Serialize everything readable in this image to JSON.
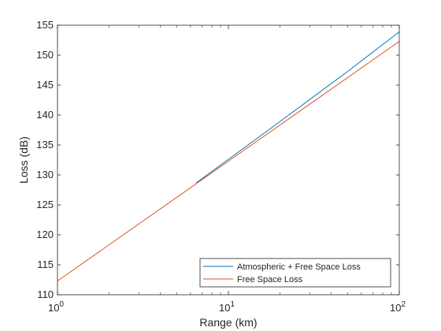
{
  "chart_data": {
    "type": "line",
    "xlabel": "Range (km)",
    "ylabel": "Loss (dB)",
    "xscale": "log",
    "xlim": [
      1,
      100
    ],
    "ylim": [
      110,
      155
    ],
    "x_ticks": [
      {
        "value": 1,
        "base": "10",
        "exp": "0"
      },
      {
        "value": 10,
        "base": "10",
        "exp": "1"
      },
      {
        "value": 100,
        "base": "10",
        "exp": "2"
      }
    ],
    "y_ticks": [
      110,
      115,
      120,
      125,
      130,
      135,
      140,
      145,
      150,
      155
    ],
    "grid": false,
    "legend_position": "bottom-right",
    "series": [
      {
        "name": "Atmospheric + Free Space Loss",
        "color": "#0072BD",
        "x": [
          6.5,
          10,
          20,
          50,
          100
        ],
        "y": [
          128.7,
          132.6,
          138.9,
          147.3,
          153.9
        ]
      },
      {
        "name": "Free Space Loss",
        "color": "#D95319",
        "x": [
          1,
          10,
          100
        ],
        "y": [
          112.3,
          132.3,
          152.3
        ]
      }
    ]
  }
}
